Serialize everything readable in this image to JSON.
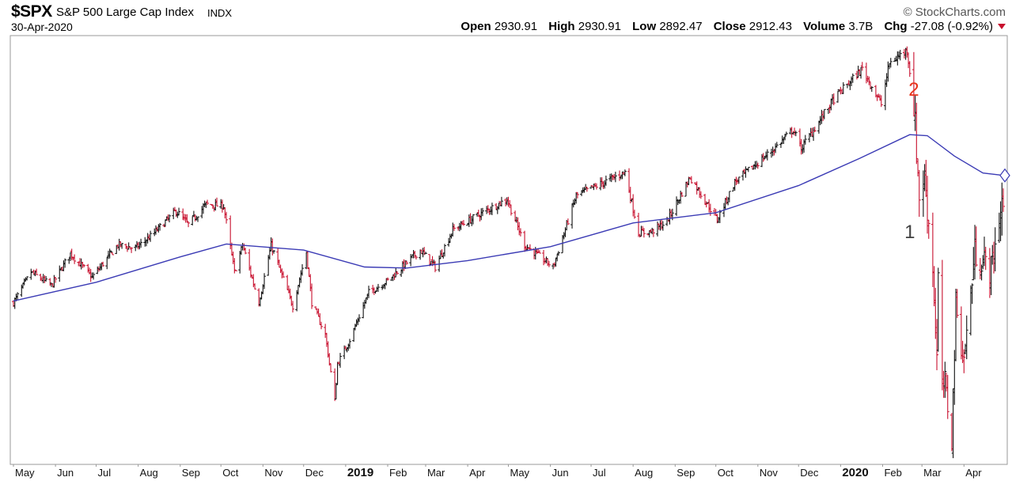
{
  "header": {
    "symbol": "$SPX",
    "name": "S&P 500 Large Cap Index",
    "exchange": "INDX",
    "date": "30-Apr-2020",
    "brand": "© StockCharts.com",
    "open_label": "Open",
    "open": "2930.91",
    "high_label": "High",
    "high": "2930.91",
    "low_label": "Low",
    "low": "2892.47",
    "close_label": "Close",
    "close": "2912.43",
    "volume_label": "Volume",
    "volume": "3.7B",
    "chg_label": "Chg",
    "chg": "-27.08 (-0.92%)",
    "down_color": "#c8102e"
  },
  "annotations": [
    {
      "label": "2",
      "x": "2020-02-24",
      "y": 3250,
      "color": "#e8341c"
    },
    {
      "label": "1",
      "x": "2020-02-21",
      "y": 2830,
      "color": "#404040"
    }
  ],
  "chart_data": {
    "type": "ohlc",
    "title": "",
    "ylim": [
      2175,
      3420
    ],
    "x_range": [
      "2018-05-01",
      "2020-04-30"
    ],
    "grid": false,
    "month_labels": [
      {
        "t": "May",
        "d": "2018-05-01",
        "bold": false
      },
      {
        "t": "Jun",
        "d": "2018-06-01",
        "bold": false
      },
      {
        "t": "Jul",
        "d": "2018-07-01",
        "bold": false
      },
      {
        "t": "Aug",
        "d": "2018-08-01",
        "bold": false
      },
      {
        "t": "Sep",
        "d": "2018-09-01",
        "bold": false
      },
      {
        "t": "Oct",
        "d": "2018-10-01",
        "bold": false
      },
      {
        "t": "Nov",
        "d": "2018-11-01",
        "bold": false
      },
      {
        "t": "Dec",
        "d": "2018-12-01",
        "bold": false
      },
      {
        "t": "2019",
        "d": "2019-01-01",
        "bold": true
      },
      {
        "t": "Feb",
        "d": "2019-02-01",
        "bold": false
      },
      {
        "t": "Mar",
        "d": "2019-03-01",
        "bold": false
      },
      {
        "t": "Apr",
        "d": "2019-04-01",
        "bold": false
      },
      {
        "t": "May",
        "d": "2019-05-01",
        "bold": false
      },
      {
        "t": "Jun",
        "d": "2019-06-01",
        "bold": false
      },
      {
        "t": "Jul",
        "d": "2019-07-01",
        "bold": false
      },
      {
        "t": "Aug",
        "d": "2019-08-01",
        "bold": false
      },
      {
        "t": "Sep",
        "d": "2019-09-01",
        "bold": false
      },
      {
        "t": "Oct",
        "d": "2019-10-01",
        "bold": false
      },
      {
        "t": "Nov",
        "d": "2019-11-01",
        "bold": false
      },
      {
        "t": "Dec",
        "d": "2019-12-01",
        "bold": false
      },
      {
        "t": "2020",
        "d": "2020-01-01",
        "bold": true
      },
      {
        "t": "Feb",
        "d": "2020-02-01",
        "bold": false
      },
      {
        "t": "Mar",
        "d": "2020-03-01",
        "bold": false
      },
      {
        "t": "Apr",
        "d": "2020-04-01",
        "bold": false
      }
    ],
    "price_path": [
      [
        "2018-05-01",
        2640
      ],
      [
        "2018-05-04",
        2660
      ],
      [
        "2018-05-14",
        2730
      ],
      [
        "2018-05-29",
        2690
      ],
      [
        "2018-06-12",
        2785
      ],
      [
        "2018-06-28",
        2715
      ],
      [
        "2018-07-17",
        2810
      ],
      [
        "2018-07-30",
        2800
      ],
      [
        "2018-08-10",
        2835
      ],
      [
        "2018-08-29",
        2910
      ],
      [
        "2018-09-07",
        2870
      ],
      [
        "2018-09-20",
        2930
      ],
      [
        "2018-10-03",
        2925
      ],
      [
        "2018-10-11",
        2730
      ],
      [
        "2018-10-17",
        2810
      ],
      [
        "2018-10-29",
        2640
      ],
      [
        "2018-11-07",
        2810
      ],
      [
        "2018-11-23",
        2630
      ],
      [
        "2018-12-03",
        2790
      ],
      [
        "2018-12-07",
        2640
      ],
      [
        "2018-12-17",
        2545
      ],
      [
        "2018-12-24",
        2350
      ],
      [
        "2018-12-26",
        2460
      ],
      [
        "2019-01-04",
        2530
      ],
      [
        "2019-01-18",
        2670
      ],
      [
        "2019-02-01",
        2705
      ],
      [
        "2019-02-25",
        2795
      ],
      [
        "2019-03-08",
        2745
      ],
      [
        "2019-03-21",
        2855
      ],
      [
        "2019-04-12",
        2905
      ],
      [
        "2019-04-30",
        2945
      ],
      [
        "2019-05-13",
        2810
      ],
      [
        "2019-06-03",
        2745
      ],
      [
        "2019-06-20",
        2955
      ],
      [
        "2019-07-26",
        3025
      ],
      [
        "2019-08-05",
        2845
      ],
      [
        "2019-08-15",
        2850
      ],
      [
        "2019-08-26",
        2880
      ],
      [
        "2019-09-12",
        3010
      ],
      [
        "2019-10-02",
        2885
      ],
      [
        "2019-10-15",
        2995
      ],
      [
        "2019-11-12",
        3090
      ],
      [
        "2019-11-27",
        3150
      ],
      [
        "2019-12-03",
        3095
      ],
      [
        "2019-12-27",
        3240
      ],
      [
        "2020-01-17",
        3330
      ],
      [
        "2020-01-31",
        3225
      ],
      [
        "2020-02-06",
        3345
      ],
      [
        "2020-02-19",
        3385
      ],
      [
        "2020-02-24",
        3225
      ],
      [
        "2020-02-28",
        2955
      ],
      [
        "2020-03-03",
        3005
      ],
      [
        "2020-03-09",
        2745
      ],
      [
        "2020-03-12",
        2480
      ],
      [
        "2020-03-13",
        2710
      ],
      [
        "2020-03-16",
        2385
      ],
      [
        "2020-03-18",
        2400
      ],
      [
        "2020-03-23",
        2237
      ],
      [
        "2020-03-26",
        2630
      ],
      [
        "2020-04-01",
        2470
      ],
      [
        "2020-04-09",
        2790
      ],
      [
        "2020-04-21",
        2735
      ],
      [
        "2020-04-29",
        2939
      ],
      [
        "2020-04-30",
        2912
      ]
    ],
    "sma_path": [
      [
        "2018-05-01",
        2645
      ],
      [
        "2018-07-01",
        2700
      ],
      [
        "2018-09-01",
        2775
      ],
      [
        "2018-10-05",
        2813
      ],
      [
        "2018-12-01",
        2795
      ],
      [
        "2019-01-15",
        2745
      ],
      [
        "2019-02-15",
        2742
      ],
      [
        "2019-04-01",
        2764
      ],
      [
        "2019-06-01",
        2805
      ],
      [
        "2019-08-01",
        2875
      ],
      [
        "2019-10-01",
        2905
      ],
      [
        "2019-12-01",
        2985
      ],
      [
        "2020-01-15",
        3065
      ],
      [
        "2020-02-21",
        3135
      ],
      [
        "2020-03-05",
        3132
      ],
      [
        "2020-03-25",
        3072
      ],
      [
        "2020-04-15",
        3022
      ],
      [
        "2020-04-30",
        3015
      ]
    ]
  }
}
